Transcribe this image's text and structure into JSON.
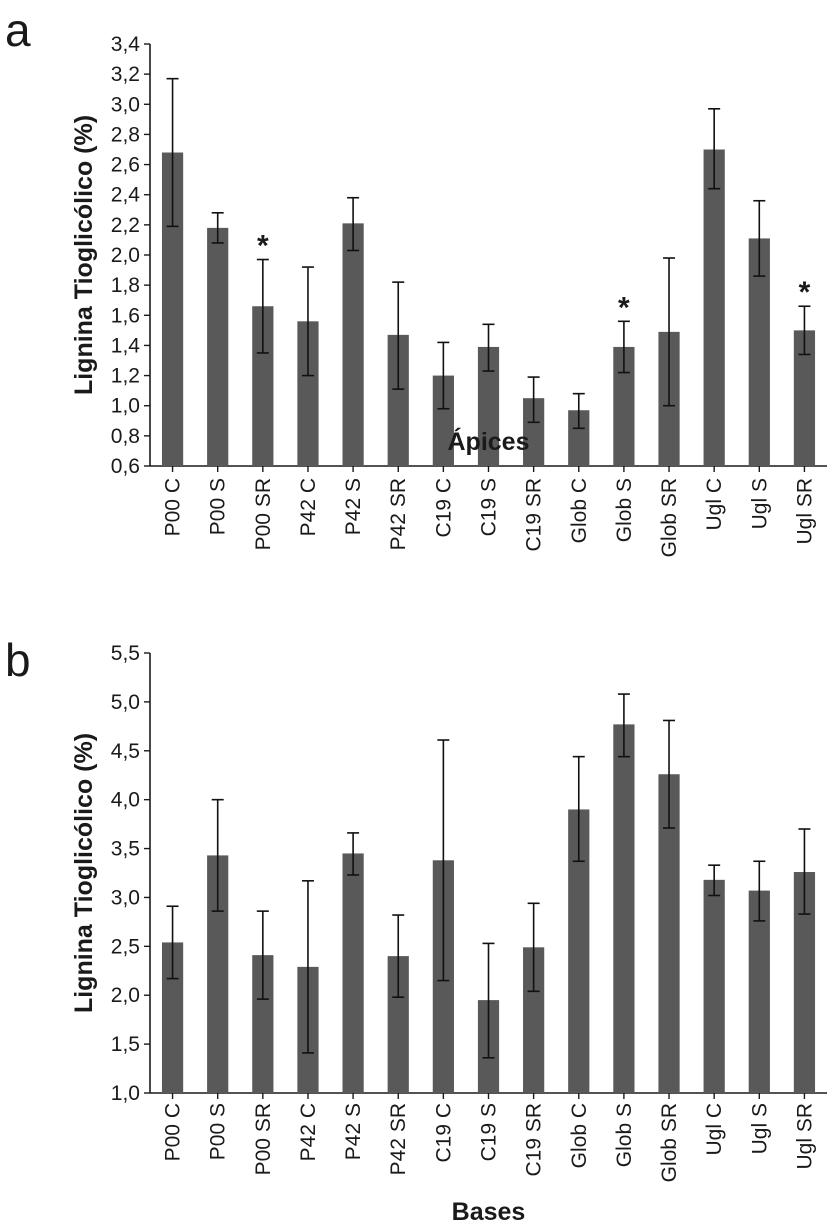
{
  "style": {
    "bar_color": "#595959",
    "axis_color": "#1a1a1a"
  },
  "chart_data": [
    {
      "type": "bar",
      "panel_label": "a",
      "xlabel": "Ápices",
      "ylabel": "Lignina Tioglicólico (%)",
      "ylim": [
        0.6,
        3.4
      ],
      "yticks": [
        "0,6",
        "0,8",
        "1,0",
        "1,2",
        "1,4",
        "1,6",
        "1,8",
        "2,0",
        "2,2",
        "2,4",
        "2,6",
        "2,8",
        "3,0",
        "3,2",
        "3,4"
      ],
      "categories": [
        "P00 C",
        "P00 S",
        "P00 SR",
        "P42 C",
        "P42 S",
        "P42 SR",
        "C19 C",
        "C19 S",
        "C19 SR",
        "Glob C",
        "Glob S",
        "Glob SR",
        "Ugl C",
        "Ugl S",
        "Ugl SR"
      ],
      "values": [
        2.68,
        2.18,
        1.66,
        1.56,
        2.21,
        1.47,
        1.2,
        1.39,
        1.05,
        0.97,
        1.39,
        1.49,
        2.7,
        2.11,
        1.5
      ],
      "error_low": [
        2.19,
        2.08,
        1.35,
        1.2,
        2.03,
        1.11,
        0.98,
        1.23,
        0.89,
        0.85,
        1.22,
        1.0,
        2.44,
        1.86,
        1.34
      ],
      "error_high": [
        3.17,
        2.28,
        1.97,
        1.92,
        2.38,
        1.82,
        1.42,
        1.54,
        1.19,
        1.08,
        1.56,
        1.98,
        2.97,
        2.36,
        1.66
      ],
      "annotations": [
        {
          "category": "P00 SR",
          "text": "*"
        },
        {
          "category": "Glob S",
          "text": "*"
        },
        {
          "category": "Ugl SR",
          "text": "*"
        }
      ]
    },
    {
      "type": "bar",
      "panel_label": "b",
      "xlabel": "Bases",
      "ylabel": "Lignina Tioglicólico (%)",
      "ylim": [
        1.0,
        5.5
      ],
      "yticks": [
        "1,0",
        "1,5",
        "2,0",
        "2,5",
        "3,0",
        "3,5",
        "4,0",
        "4,5",
        "5,0",
        "5,5"
      ],
      "categories": [
        "P00 C",
        "P00 S",
        "P00 SR",
        "P42 C",
        "P42 S",
        "P42 SR",
        "C19 C",
        "C19 S",
        "C19 SR",
        "Glob C",
        "Glob S",
        "Glob SR",
        "Ugl C",
        "Ugl S",
        "Ugl SR"
      ],
      "values": [
        2.54,
        3.43,
        2.41,
        2.29,
        3.45,
        2.4,
        3.38,
        1.95,
        2.49,
        3.9,
        4.77,
        4.26,
        3.18,
        3.07,
        3.26
      ],
      "error_low": [
        2.17,
        2.86,
        1.96,
        1.41,
        3.23,
        1.98,
        2.15,
        1.36,
        2.04,
        3.37,
        4.44,
        3.71,
        3.02,
        2.76,
        2.83
      ],
      "error_high": [
        2.91,
        4.0,
        2.86,
        3.17,
        3.66,
        2.82,
        4.61,
        2.53,
        2.94,
        4.44,
        5.08,
        4.81,
        3.33,
        3.37,
        3.7
      ],
      "annotations": []
    }
  ]
}
